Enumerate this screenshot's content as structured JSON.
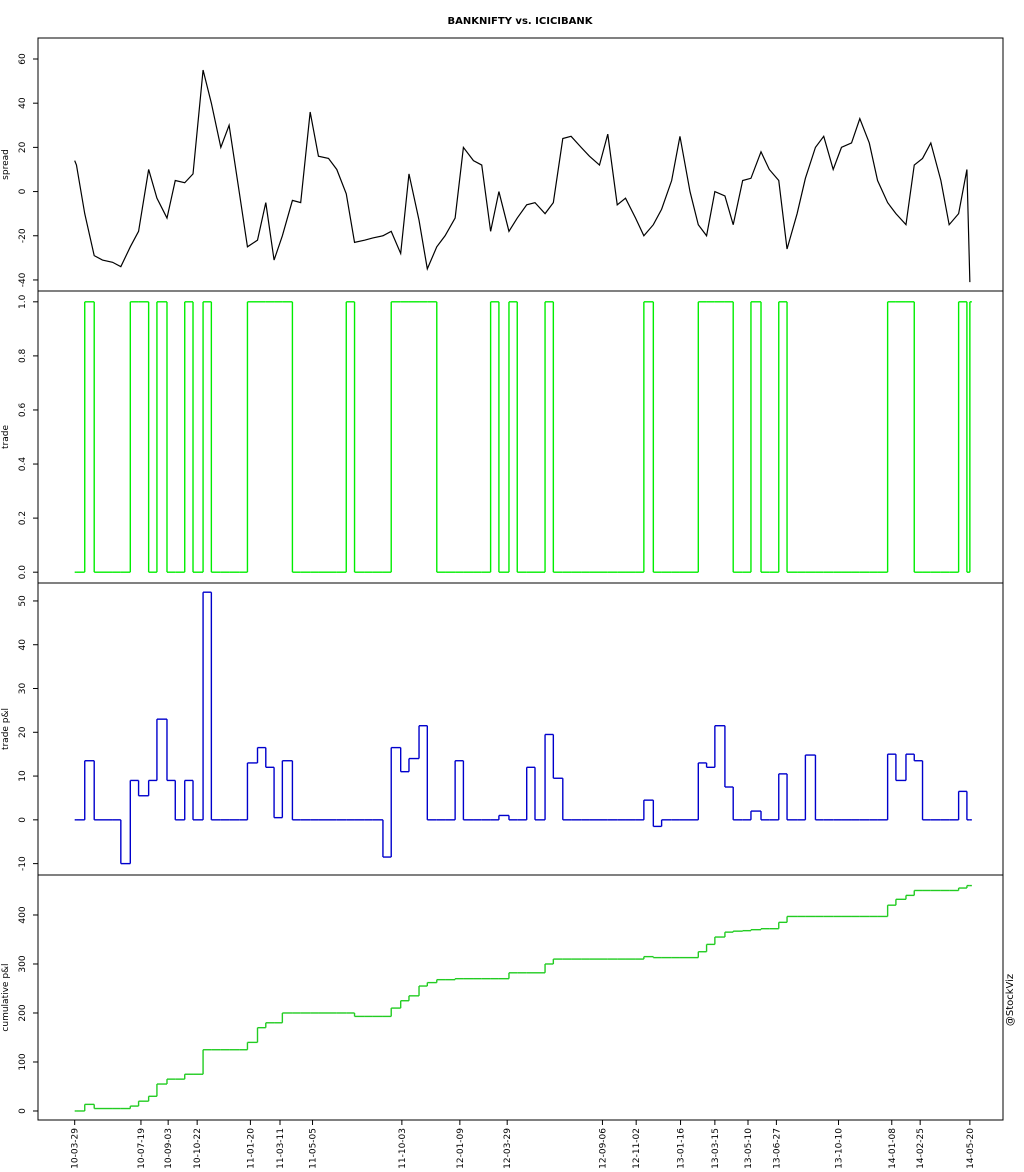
{
  "chart_data": {
    "type": "line",
    "title": "BANKNIFTY vs. ICICIBANK",
    "credit": "@StockViz",
    "x": [
      "2010-03-29",
      "2010-04-01",
      "2010-04-15",
      "2010-05-01",
      "2010-05-15",
      "2010-06-01",
      "2010-06-15",
      "2010-07-01",
      "2010-07-15",
      "2010-08-01",
      "2010-08-15",
      "2010-09-01",
      "2010-09-15",
      "2010-10-01",
      "2010-10-15",
      "2010-11-01",
      "2010-11-15",
      "2010-12-01",
      "2010-12-15",
      "2011-01-01",
      "2011-01-15",
      "2011-02-01",
      "2011-02-15",
      "2011-03-01",
      "2011-03-15",
      "2011-04-01",
      "2011-04-15",
      "2011-05-01",
      "2011-05-15",
      "2011-06-01",
      "2011-06-15",
      "2011-07-01",
      "2011-07-15",
      "2011-08-01",
      "2011-08-15",
      "2011-09-01",
      "2011-09-15",
      "2011-10-01",
      "2011-10-15",
      "2011-11-01",
      "2011-11-15",
      "2011-12-01",
      "2011-12-15",
      "2012-01-01",
      "2012-01-15",
      "2012-02-01",
      "2012-02-15",
      "2012-03-01",
      "2012-03-15",
      "2012-04-01",
      "2012-04-15",
      "2012-05-01",
      "2012-05-15",
      "2012-06-01",
      "2012-06-15",
      "2012-07-01",
      "2012-07-15",
      "2012-08-01",
      "2012-08-15",
      "2012-09-01",
      "2012-09-15",
      "2012-10-01",
      "2012-10-15",
      "2012-11-01",
      "2012-11-15",
      "2012-12-01",
      "2012-12-15",
      "2013-01-01",
      "2013-01-15",
      "2013-02-01",
      "2013-02-15",
      "2013-03-01",
      "2013-03-15",
      "2013-04-01",
      "2013-04-15",
      "2013-05-01",
      "2013-05-15",
      "2013-06-01",
      "2013-06-15",
      "2013-07-01",
      "2013-07-15",
      "2013-08-01",
      "2013-08-15",
      "2013-09-01",
      "2013-09-15",
      "2013-10-01",
      "2013-10-15",
      "2013-11-01",
      "2013-11-15",
      "2013-12-01",
      "2013-12-15",
      "2014-01-01",
      "2014-01-15",
      "2014-02-01",
      "2014-02-15",
      "2014-03-01",
      "2014-03-15",
      "2014-04-01",
      "2014-04-15",
      "2014-05-01",
      "2014-05-15",
      "2014-05-20"
    ],
    "xlim": [
      "2010-01-26",
      "2014-07-15"
    ],
    "xticks": [
      "2010-03-29",
      "2010-07-19",
      "2010-09-03",
      "2010-10-22",
      "2011-01-20",
      "2011-03-11",
      "2011-05-05",
      "2011-10-03",
      "2012-01-09",
      "2012-03-29",
      "2012-09-06",
      "2012-11-02",
      "2013-01-16",
      "2013-03-15",
      "2013-05-10",
      "2013-06-27",
      "2013-10-10",
      "2014-01-08",
      "2014-02-25",
      "2014-05-20"
    ],
    "series": [
      {
        "name": "spread",
        "color": "#000000",
        "style": "line",
        "ylim": [
          -45,
          69.5
        ],
        "yticks": [
          -40,
          -20,
          0,
          20,
          40,
          60
        ],
        "values": [
          14,
          12,
          -10,
          -29,
          -31,
          -32,
          -34,
          -25,
          -18,
          10,
          -3,
          -12,
          5,
          4,
          8,
          55,
          40,
          20,
          30,
          0,
          -25,
          -22,
          -5,
          -31,
          -20,
          -4,
          -5,
          36,
          16,
          15,
          10,
          -1,
          -23,
          -22,
          -21,
          -20,
          -18,
          -28,
          8,
          -13,
          -35,
          -25,
          -20,
          -12,
          20,
          14,
          12,
          -18,
          0,
          -18,
          -12,
          -6,
          -5,
          -10,
          -5,
          24,
          25,
          20,
          16,
          12,
          26,
          -6,
          -3,
          -12,
          -20,
          -15,
          -8,
          5,
          25,
          0,
          -15,
          -20,
          0,
          -2,
          -15,
          5,
          6,
          18,
          10,
          5,
          -26,
          -10,
          6,
          20,
          25,
          10,
          20,
          22,
          33,
          22,
          5,
          -5,
          -10,
          -15,
          12,
          15,
          22,
          5,
          -15,
          -10,
          10,
          -41
        ]
      },
      {
        "name": "trade",
        "color": "#00ee00",
        "style": "step",
        "ylim": [
          -0.04,
          1.04
        ],
        "yticks": [
          {
            "value": 0,
            "label": "0.0"
          },
          0.2,
          0.4,
          0.6,
          0.8,
          {
            "value": 1,
            "label": "1.0"
          }
        ],
        "values": [
          0,
          0,
          1,
          0,
          0,
          0,
          0,
          1,
          1,
          0,
          1,
          0,
          0,
          1,
          0,
          1,
          0,
          0,
          0,
          0,
          1,
          1,
          1,
          1,
          1,
          0,
          0,
          0,
          0,
          0,
          0,
          1,
          0,
          0,
          0,
          0,
          1,
          1,
          1,
          1,
          1,
          0,
          0,
          0,
          0,
          0,
          0,
          1,
          0,
          1,
          0,
          0,
          0,
          1,
          0,
          0,
          0,
          0,
          0,
          0,
          0,
          0,
          0,
          0,
          1,
          0,
          0,
          0,
          0,
          0,
          1,
          1,
          1,
          1,
          0,
          0,
          1,
          0,
          0,
          1,
          0,
          0,
          0,
          0,
          0,
          0,
          0,
          0,
          0,
          0,
          0,
          1,
          1,
          1,
          0,
          0,
          0,
          0,
          0,
          1,
          0,
          1
        ]
      },
      {
        "name": "trade p&l",
        "color": "#0000cc",
        "style": "step",
        "ylim": [
          -12.6,
          54.1
        ],
        "yticks": [
          -10,
          0,
          10,
          20,
          30,
          40,
          50
        ],
        "values": [
          0,
          0,
          13.5,
          0,
          0,
          0,
          -10,
          9,
          5.5,
          9,
          23,
          9,
          0,
          9,
          0,
          52,
          0,
          0,
          0,
          0,
          13,
          16.5,
          12,
          0.5,
          13.5,
          0,
          0,
          0,
          0,
          0,
          0,
          0,
          0,
          0,
          0,
          -8.5,
          16.5,
          11,
          14,
          21.5,
          0,
          0,
          0,
          13.5,
          0,
          0,
          0,
          0,
          1,
          0,
          0,
          12,
          0,
          19.5,
          9.5,
          0,
          0,
          0,
          0,
          0,
          0,
          0,
          0,
          0,
          4.5,
          -1.5,
          0,
          0,
          0,
          0,
          13,
          12,
          21.5,
          7.5,
          0,
          0,
          2,
          0,
          0,
          10.5,
          0,
          0,
          14.8,
          0,
          0,
          0,
          0,
          0,
          0,
          0,
          0,
          15,
          9,
          15,
          13.5,
          0,
          0,
          0,
          0,
          6.5,
          0,
          0
        ]
      },
      {
        "name": "cumulative p&l",
        "color": "#22cc22",
        "style": "step",
        "ylim": [
          -18.4,
          481.6
        ],
        "yticks": [
          0,
          100,
          200,
          300,
          400
        ],
        "values": [
          0,
          0,
          13.5,
          5,
          5,
          5,
          5,
          10,
          20,
          30,
          55,
          65,
          65,
          75,
          75,
          125,
          125,
          125,
          125,
          125,
          140,
          170,
          180,
          180,
          200,
          200,
          200,
          200,
          200,
          200,
          200,
          200,
          193,
          193,
          193,
          193,
          210,
          225,
          235,
          255,
          262,
          268,
          268,
          270,
          270,
          270,
          270,
          270,
          270,
          282,
          282,
          282,
          282,
          300,
          310,
          310,
          310,
          310,
          310,
          310,
          310,
          310,
          310,
          310,
          315,
          313,
          313,
          313,
          313,
          313,
          325,
          340,
          355,
          365,
          367,
          368,
          370,
          372,
          372,
          385,
          397,
          397,
          397,
          397,
          397,
          397,
          397,
          397,
          397,
          397,
          397,
          420,
          432,
          440,
          450,
          450,
          450,
          450,
          450,
          455,
          460,
          460
        ]
      }
    ]
  }
}
